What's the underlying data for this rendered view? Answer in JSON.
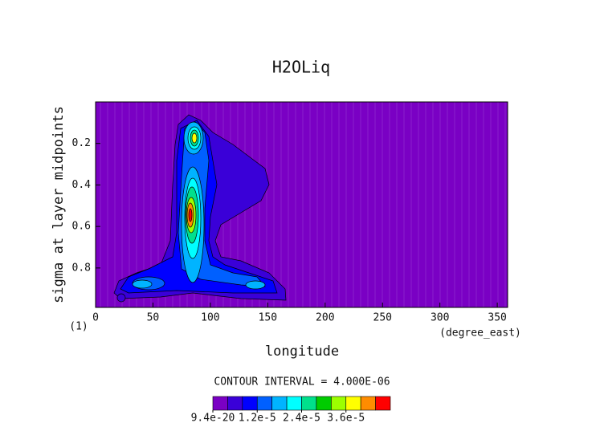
{
  "chart_data": {
    "type": "contour",
    "title": "H2OLiq",
    "x_label": "longitude",
    "y_label": "sigma at layer midpoints",
    "x_units": "(degree_east)",
    "y_note": "(1)",
    "xlim": [
      0,
      359
    ],
    "xticks": [
      0,
      50,
      100,
      150,
      200,
      250,
      300,
      350
    ],
    "ylim": [
      0,
      0.99
    ],
    "y_inverted": true,
    "yticks": [
      0.2,
      0.4,
      0.6,
      0.8
    ],
    "contour_interval_label": "CONTOUR INTERVAL = 4.000E-06",
    "colorbar": {
      "lim": [
        9.4e-20,
        4.8e-05
      ],
      "colors": [
        "#7a00c4",
        "#3a00d8",
        "#0000ff",
        "#0060ff",
        "#00b4ff",
        "#00ffff",
        "#00e08c",
        "#00cc00",
        "#9cff00",
        "#ffff00",
        "#ff8c00",
        "#ff0000"
      ],
      "ticks": [
        9.4e-20,
        {
          "value": 1.2e-05,
          "label": "1.2e-5"
        },
        {
          "value": 2.4e-05,
          "label": "2.4e-5"
        },
        {
          "value": 3.6e-05,
          "label": "3.6e-5"
        }
      ]
    }
  }
}
